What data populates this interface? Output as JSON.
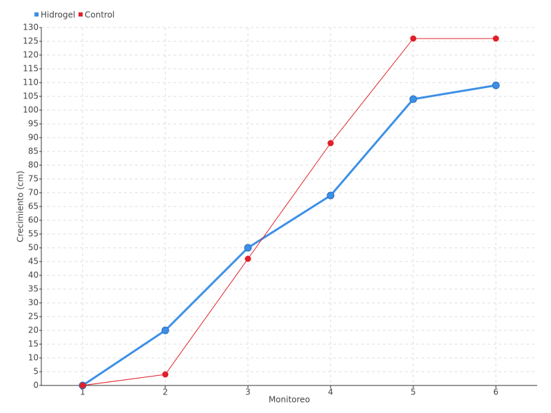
{
  "chart_data": {
    "type": "line",
    "x_label": "Monitoreo",
    "y_label": "Crecimiento (cm)",
    "categories": [
      "1",
      "2",
      "3",
      "4",
      "5",
      "6"
    ],
    "series": [
      {
        "name": "Hidrogel",
        "color": "#3d8fe6",
        "values": [
          0,
          20,
          50,
          69,
          104,
          109
        ]
      },
      {
        "name": "Control",
        "color": "#e0202a",
        "values": [
          0,
          4,
          46,
          88,
          126,
          126
        ]
      }
    ],
    "ylim": [
      0,
      130
    ],
    "yticks": [
      0,
      5,
      10,
      15,
      20,
      25,
      30,
      35,
      40,
      45,
      50,
      55,
      60,
      65,
      70,
      75,
      80,
      85,
      90,
      95,
      100,
      105,
      110,
      115,
      120,
      125,
      130
    ],
    "grid": true,
    "legend": "top-left"
  }
}
